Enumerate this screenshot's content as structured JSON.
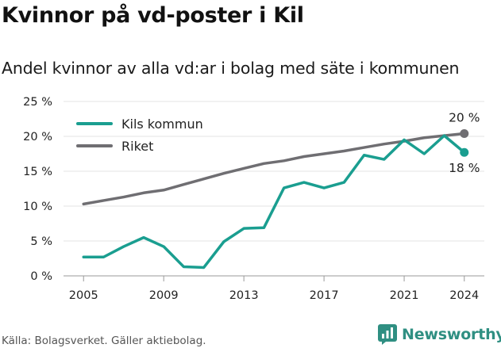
{
  "title": "Kvinnor på vd-poster i Kil",
  "subtitle": "Andel kvinnor av alla vd:ar i bolag med säte i kommunen",
  "source": "Källa: Bolagsverket. Gäller aktiebolag.",
  "brand": "Newsworthy",
  "chart_data": {
    "type": "line",
    "x": [
      2005,
      2006,
      2007,
      2008,
      2009,
      2010,
      2011,
      2012,
      2013,
      2014,
      2015,
      2016,
      2017,
      2018,
      2019,
      2020,
      2021,
      2022,
      2023,
      2024
    ],
    "x_ticks": [
      "2005",
      "2009",
      "2013",
      "2017",
      "2021",
      "2024"
    ],
    "x_tick_values": [
      2005,
      2009,
      2013,
      2017,
      2021,
      2024
    ],
    "y_ticks": [
      "0 %",
      "5 %",
      "10 %",
      "15 %",
      "20 %",
      "25 %"
    ],
    "y_tick_values": [
      0,
      5,
      10,
      15,
      20,
      25
    ],
    "xlim": [
      2004,
      2025
    ],
    "ylim": [
      0,
      25
    ],
    "grid": true,
    "legend_position": "top-left",
    "series": [
      {
        "name": "Kils kommun",
        "color": "#1a9e90",
        "values": [
          2.7,
          2.7,
          4.2,
          5.5,
          4.2,
          1.3,
          1.2,
          4.9,
          6.8,
          6.9,
          12.6,
          13.4,
          12.6,
          13.4,
          17.3,
          16.7,
          19.5,
          17.5,
          20.1,
          17.7
        ],
        "end_label": "18 %"
      },
      {
        "name": "Riket",
        "color": "#6f6e72",
        "values": [
          10.3,
          10.8,
          11.3,
          11.9,
          12.3,
          13.1,
          13.9,
          14.7,
          15.4,
          16.1,
          16.5,
          17.1,
          17.5,
          17.9,
          18.4,
          18.9,
          19.3,
          19.8,
          20.1,
          20.4
        ],
        "end_label": "20 %"
      }
    ]
  }
}
